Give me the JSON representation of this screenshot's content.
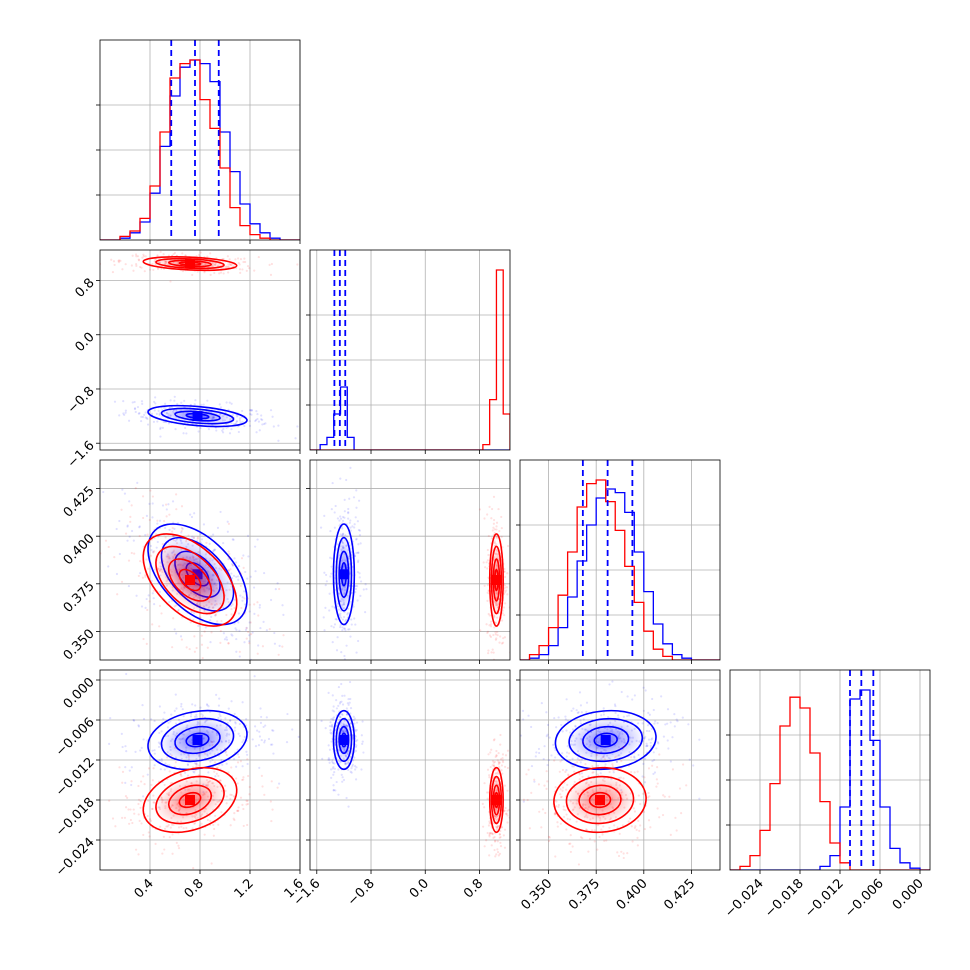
{
  "chart_data": {
    "type": "corner",
    "colors": {
      "series_a": "#0000ff",
      "series_b": "#ff0000",
      "grid": "#b0b0b0",
      "quantile_line": "#0000ff"
    },
    "grid": true,
    "parameters": [
      {
        "id": "p1",
        "range": [
          0.0,
          1.6
        ],
        "ticks": [
          "0.4",
          "0.8",
          "1.2",
          "1.6"
        ],
        "tick_values": [
          0.4,
          0.8,
          1.2,
          1.6
        ]
      },
      {
        "id": "p2",
        "range": [
          -1.7,
          1.25
        ],
        "ticks": [
          "-1.6",
          "-0.8",
          "0.0",
          "0.8"
        ],
        "tick_values": [
          -1.6,
          -0.8,
          0.0,
          0.8
        ]
      },
      {
        "id": "p3",
        "range": [
          0.335,
          0.44
        ],
        "ticks": [
          "0.350",
          "0.375",
          "0.400",
          "0.425"
        ],
        "tick_values": [
          0.35,
          0.375,
          0.4,
          0.425
        ]
      },
      {
        "id": "p4",
        "range": [
          -0.0285,
          0.0015
        ],
        "ticks": [
          "-0.024",
          "-0.018",
          "-0.012",
          "-0.006",
          "0.000"
        ],
        "tick_values": [
          -0.024,
          -0.018,
          -0.012,
          -0.006,
          0.0
        ]
      }
    ],
    "series": [
      {
        "color": "blue",
        "means": [
          0.78,
          -1.2,
          0.38,
          -0.009
        ],
        "sds": [
          0.18,
          0.07,
          0.012,
          0.002
        ],
        "corr": [
          [
            1,
            -0.4,
            -0.5,
            0.2
          ],
          [
            -0.4,
            1,
            0.0,
            0.0
          ],
          [
            -0.5,
            0.0,
            1,
            0.1
          ],
          [
            0.2,
            0.0,
            0.1,
            1
          ]
        ]
      },
      {
        "color": "red",
        "means": [
          0.72,
          1.05,
          0.377,
          -0.018
        ],
        "sds": [
          0.17,
          0.045,
          0.011,
          0.0022
        ],
        "corr": [
          [
            1,
            -0.3,
            -0.5,
            0.3
          ],
          [
            -0.3,
            1,
            0.0,
            0.0
          ],
          [
            -0.5,
            0.0,
            1,
            0.05
          ],
          [
            0.3,
            0.0,
            0.05,
            1
          ]
        ]
      }
    ],
    "histograms": [
      {
        "param": "p1",
        "bin_edges": [
          0.0,
          0.08,
          0.16,
          0.24,
          0.32,
          0.4,
          0.48,
          0.56,
          0.64,
          0.72,
          0.8,
          0.88,
          0.96,
          1.04,
          1.12,
          1.2,
          1.28,
          1.36,
          1.44,
          1.52,
          1.6
        ],
        "blue": [
          0.0,
          0.0,
          0.01,
          0.04,
          0.1,
          0.26,
          0.52,
          0.8,
          0.96,
          1.0,
          0.98,
          0.88,
          0.6,
          0.38,
          0.2,
          0.09,
          0.04,
          0.01,
          0.0,
          0.0
        ],
        "red": [
          0.0,
          0.0,
          0.02,
          0.05,
          0.12,
          0.3,
          0.6,
          0.9,
          0.98,
          1.0,
          0.78,
          0.62,
          0.4,
          0.18,
          0.08,
          0.03,
          0.01,
          0.0,
          0.0,
          0.0
        ],
        "quantiles": [
          0.57,
          0.76,
          0.95
        ]
      },
      {
        "param": "p2",
        "bin_edges": [
          -1.7,
          -1.55,
          -1.45,
          -1.35,
          -1.25,
          -1.15,
          -1.05,
          -0.95,
          -0.85,
          0.75,
          0.85,
          0.95,
          1.05,
          1.15,
          1.25
        ],
        "blue": [
          0.0,
          0.03,
          0.07,
          0.2,
          0.35,
          0.07,
          0.0,
          0.0,
          0.0,
          0.0,
          0.0,
          0.0,
          0.0,
          0.0
        ],
        "red": [
          0.0,
          0.0,
          0.0,
          0.0,
          0.0,
          0.0,
          0.0,
          0.0,
          0.0,
          0.0,
          0.03,
          0.28,
          1.0,
          0.2
        ],
        "quantiles": [
          -1.34,
          -1.26,
          -1.18
        ]
      },
      {
        "param": "p3",
        "bin_edges": [
          0.335,
          0.34,
          0.345,
          0.35,
          0.355,
          0.36,
          0.365,
          0.37,
          0.375,
          0.38,
          0.385,
          0.39,
          0.395,
          0.4,
          0.405,
          0.41,
          0.415,
          0.42,
          0.425,
          0.43,
          0.435,
          0.44
        ],
        "blue": [
          0.0,
          0.01,
          0.03,
          0.08,
          0.18,
          0.35,
          0.55,
          0.75,
          0.9,
          0.95,
          0.93,
          0.82,
          0.6,
          0.38,
          0.2,
          0.09,
          0.03,
          0.01,
          0.0,
          0.0,
          0.0
        ],
        "red": [
          0.0,
          0.03,
          0.08,
          0.18,
          0.36,
          0.6,
          0.85,
          0.98,
          1.0,
          0.88,
          0.72,
          0.52,
          0.32,
          0.16,
          0.06,
          0.02,
          0.0,
          0.0,
          0.0,
          0.0,
          0.0
        ],
        "quantiles": [
          0.368,
          0.381,
          0.394
        ]
      },
      {
        "param": "p4",
        "bin_edges": [
          -0.0285,
          -0.027,
          -0.0255,
          -0.024,
          -0.0225,
          -0.021,
          -0.0195,
          -0.018,
          -0.0165,
          -0.015,
          -0.0135,
          -0.012,
          -0.0105,
          -0.009,
          -0.0075,
          -0.006,
          -0.0045,
          -0.003,
          -0.0015,
          0.0,
          0.0015
        ],
        "blue": [
          0.0,
          0.0,
          0.0,
          0.0,
          0.0,
          0.0,
          0.0,
          0.0,
          0.0,
          0.02,
          0.08,
          0.35,
          0.95,
          1.0,
          0.72,
          0.35,
          0.12,
          0.04,
          0.01,
          0.0
        ],
        "red": [
          0.0,
          0.02,
          0.08,
          0.22,
          0.48,
          0.8,
          0.96,
          0.9,
          0.65,
          0.38,
          0.15,
          0.04,
          0.0,
          0.0,
          0.0,
          0.0,
          0.0,
          0.0,
          0.0,
          0.0
        ],
        "quantiles": [
          -0.0105,
          -0.0088,
          -0.007
        ]
      }
    ]
  }
}
